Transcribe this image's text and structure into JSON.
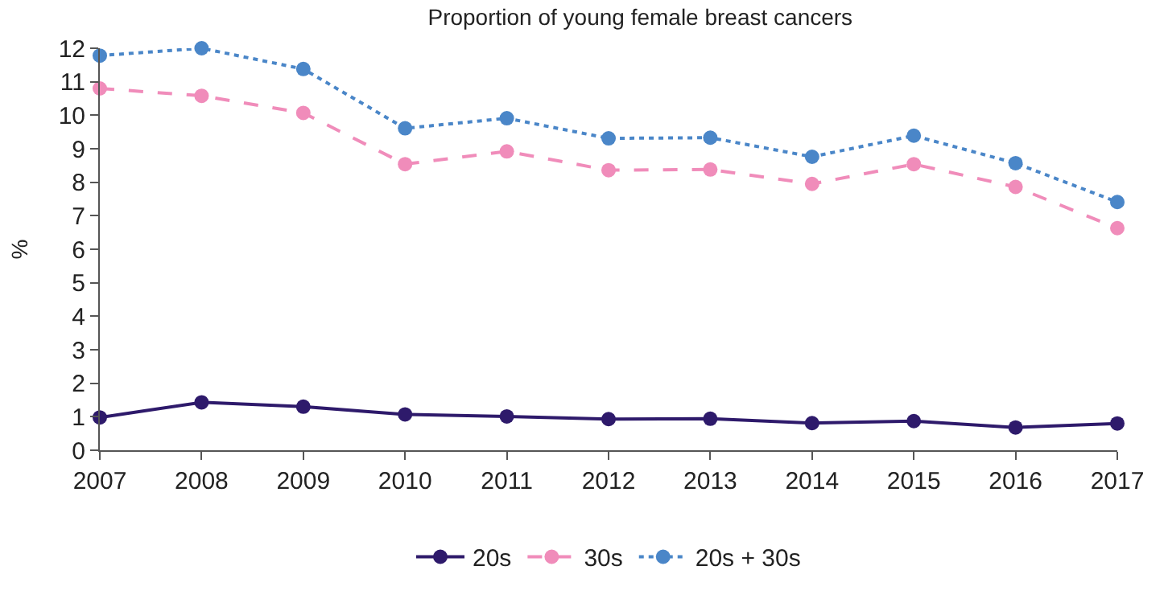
{
  "chart_data": {
    "type": "line",
    "title": "Proportion of young female breast cancers",
    "ylabel": "%",
    "x": [
      2007,
      2008,
      2009,
      2010,
      2011,
      2012,
      2013,
      2014,
      2015,
      2016,
      2017
    ],
    "xlim": [
      2007,
      2017
    ],
    "xticks": [
      2007,
      2008,
      2009,
      2010,
      2011,
      2012,
      2013,
      2014,
      2015,
      2016,
      2017
    ],
    "ylim": [
      0,
      12
    ],
    "yticks": [
      0,
      1,
      2,
      3,
      4,
      5,
      6,
      7,
      8,
      9,
      10,
      11,
      12
    ],
    "legend": "bottom",
    "marker": "circle",
    "series": [
      {
        "name": "20s",
        "color": "#2e1a6b",
        "line_style": "solid",
        "values": [
          0.98,
          1.43,
          1.3,
          1.07,
          1.01,
          0.93,
          0.94,
          0.81,
          0.87,
          0.68,
          0.8
        ]
      },
      {
        "name": "30s",
        "color": "#f08cba",
        "line_style": "dashed",
        "values": [
          10.8,
          10.58,
          10.07,
          8.54,
          8.92,
          8.36,
          8.38,
          7.95,
          8.54,
          7.86,
          6.63
        ]
      },
      {
        "name": "20s + 30s",
        "color": "#4a86c8",
        "line_style": "dotted",
        "values": [
          11.78,
          12.0,
          11.38,
          9.61,
          9.91,
          9.31,
          9.33,
          8.76,
          9.39,
          8.57,
          7.41
        ]
      }
    ]
  }
}
